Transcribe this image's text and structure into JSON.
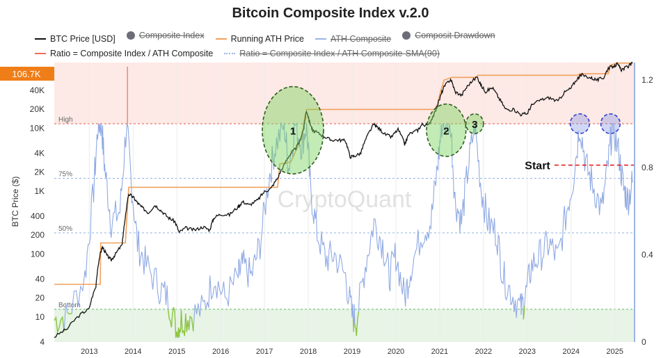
{
  "chart_data": {
    "type": "line",
    "title": "Bitcoin Composite Index v.2.0",
    "ylabel": "BTC Price ($)",
    "current_price_badge": "106.7K",
    "legend": [
      {
        "name": "BTC Price [USD]",
        "kind": "line",
        "color": "#111111",
        "active": true
      },
      {
        "name": "Composite Index",
        "kind": "dot",
        "color": "#6d6d7a",
        "active": false
      },
      {
        "name": "Running ATH Price",
        "kind": "line",
        "color": "#f0a15c",
        "active": true
      },
      {
        "name": "ATH Composite",
        "kind": "line",
        "color": "#9bb3e6",
        "active": false
      },
      {
        "name": "Composit Drawdown",
        "kind": "dot",
        "color": "#6d6d7a",
        "active": false
      },
      {
        "name": "Ratio = Composite Index / ATH Composite",
        "kind": "line",
        "color": "#f06a5a",
        "active": true
      },
      {
        "name": "Ratio = Composite Index / ATH  Composite-SMA(90)",
        "kind": "dotted",
        "color": "#9bb3e6",
        "active": false
      }
    ],
    "x_ticks": [
      "2013",
      "2014",
      "2015",
      "2016",
      "2017",
      "2018",
      "2019",
      "2020",
      "2021",
      "2022",
      "2023",
      "2024",
      "2025"
    ],
    "x_range": [
      2012.2,
      2025.45
    ],
    "y_left": {
      "scale": "log",
      "range": [
        4,
        110000
      ],
      "ticks": [
        "4",
        "10",
        "20",
        "40",
        "100",
        "200",
        "400",
        "1K",
        "2K",
        "4K",
        "10K",
        "20K",
        "40K"
      ]
    },
    "y_right": {
      "range": [
        0,
        1.28
      ],
      "ticks": [
        "0",
        "0.4",
        "0.8",
        "1.2"
      ]
    },
    "levels": [
      {
        "label": "High",
        "ratio": 1.0,
        "color": "#e05a4f"
      },
      {
        "label": "75%",
        "ratio": 0.75,
        "color": "#8fb0e8"
      },
      {
        "label": "50%",
        "ratio": 0.5,
        "color": "#8fb0e8"
      },
      {
        "label": "Bottom",
        "ratio": 0.15,
        "color": "#5cb85c"
      }
    ],
    "start_annotation": {
      "label": "Start",
      "ratio": 0.81,
      "x": 2024.35
    },
    "watermark": "CryptoQuant",
    "circles": [
      {
        "label": "1",
        "x": 2017.65,
        "ratio": 0.97,
        "rx": 0.7,
        "ry": 0.2,
        "color": "green"
      },
      {
        "label": "2",
        "x": 2021.15,
        "ratio": 0.97,
        "rx": 0.45,
        "ry": 0.12,
        "color": "green"
      },
      {
        "label": "3",
        "x": 2021.8,
        "ratio": 1.0,
        "rx": 0.2,
        "ry": 0.045,
        "color": "green"
      },
      {
        "label": "",
        "x": 2024.2,
        "ratio": 1.0,
        "rx": 0.22,
        "ry": 0.045,
        "color": "blue"
      },
      {
        "label": "",
        "x": 2024.9,
        "ratio": 1.0,
        "rx": 0.22,
        "ry": 0.045,
        "color": "blue"
      }
    ],
    "btc_price": [
      [
        2012.2,
        4.8
      ],
      [
        2012.5,
        6.5
      ],
      [
        2012.8,
        11
      ],
      [
        2013.0,
        13.5
      ],
      [
        2013.15,
        30
      ],
      [
        2013.25,
        100
      ],
      [
        2013.3,
        130
      ],
      [
        2013.4,
        95
      ],
      [
        2013.5,
        80
      ],
      [
        2013.6,
        100
      ],
      [
        2013.75,
        140
      ],
      [
        2013.82,
        350
      ],
      [
        2013.9,
        900
      ],
      [
        2014.0,
        800
      ],
      [
        2014.1,
        650
      ],
      [
        2014.2,
        550
      ],
      [
        2014.35,
        450
      ],
      [
        2014.5,
        600
      ],
      [
        2014.65,
        480
      ],
      [
        2014.8,
        380
      ],
      [
        2014.95,
        330
      ],
      [
        2015.05,
        220
      ],
      [
        2015.2,
        260
      ],
      [
        2015.4,
        240
      ],
      [
        2015.6,
        270
      ],
      [
        2015.75,
        240
      ],
      [
        2015.85,
        380
      ],
      [
        2016.0,
        430
      ],
      [
        2016.2,
        420
      ],
      [
        2016.4,
        560
      ],
      [
        2016.5,
        680
      ],
      [
        2016.65,
        600
      ],
      [
        2016.85,
        720
      ],
      [
        2017.0,
        980
      ],
      [
        2017.15,
        1100
      ],
      [
        2017.3,
        1600
      ],
      [
        2017.45,
        2600
      ],
      [
        2017.6,
        4000
      ],
      [
        2017.7,
        4600
      ],
      [
        2017.8,
        6000
      ],
      [
        2017.9,
        10000
      ],
      [
        2017.96,
        19000
      ],
      [
        2018.02,
        13000
      ],
      [
        2018.1,
        9000
      ],
      [
        2018.2,
        8500
      ],
      [
        2018.35,
        7500
      ],
      [
        2018.5,
        6500
      ],
      [
        2018.7,
        6500
      ],
      [
        2018.85,
        6300
      ],
      [
        2018.95,
        3500
      ],
      [
        2019.05,
        3600
      ],
      [
        2019.2,
        4000
      ],
      [
        2019.35,
        7500
      ],
      [
        2019.5,
        11500
      ],
      [
        2019.6,
        10000
      ],
      [
        2019.75,
        8000
      ],
      [
        2019.9,
        7200
      ],
      [
        2020.05,
        9500
      ],
      [
        2020.2,
        5500
      ],
      [
        2020.3,
        8000
      ],
      [
        2020.5,
        9300
      ],
      [
        2020.6,
        11500
      ],
      [
        2020.75,
        11000
      ],
      [
        2020.9,
        18000
      ],
      [
        2021.0,
        29000
      ],
      [
        2021.1,
        45000
      ],
      [
        2021.25,
        60000
      ],
      [
        2021.35,
        38000
      ],
      [
        2021.5,
        33000
      ],
      [
        2021.65,
        48000
      ],
      [
        2021.85,
        65000
      ],
      [
        2021.95,
        47000
      ],
      [
        2022.05,
        38000
      ],
      [
        2022.2,
        44000
      ],
      [
        2022.35,
        30000
      ],
      [
        2022.5,
        20000
      ],
      [
        2022.7,
        19500
      ],
      [
        2022.85,
        16500
      ],
      [
        2023.0,
        17000
      ],
      [
        2023.1,
        23000
      ],
      [
        2023.3,
        28000
      ],
      [
        2023.5,
        30500
      ],
      [
        2023.7,
        26500
      ],
      [
        2023.85,
        37000
      ],
      [
        2024.0,
        43000
      ],
      [
        2024.15,
        62000
      ],
      [
        2024.25,
        70000
      ],
      [
        2024.45,
        63000
      ],
      [
        2024.6,
        58000
      ],
      [
        2024.75,
        64000
      ],
      [
        2024.85,
        90000
      ],
      [
        2025.0,
        98000
      ],
      [
        2025.05,
        104000
      ],
      [
        2025.15,
        85000
      ],
      [
        2025.3,
        95000
      ],
      [
        2025.4,
        106700
      ]
    ],
    "ath_price": [
      [
        2012.2,
        33
      ],
      [
        2013.25,
        33
      ],
      [
        2013.26,
        150
      ],
      [
        2013.82,
        150
      ],
      [
        2013.83,
        180
      ],
      [
        2013.9,
        1150
      ],
      [
        2017.3,
        1150
      ],
      [
        2017.35,
        2700
      ],
      [
        2017.6,
        2900
      ],
      [
        2017.75,
        4900
      ],
      [
        2017.85,
        7000
      ],
      [
        2017.92,
        15000
      ],
      [
        2017.96,
        19800
      ],
      [
        2020.9,
        19800
      ],
      [
        2020.95,
        24000
      ],
      [
        2021.0,
        34000
      ],
      [
        2021.1,
        58000
      ],
      [
        2021.28,
        64000
      ],
      [
        2021.85,
        64000
      ],
      [
        2021.87,
        69000
      ],
      [
        2024.15,
        69000
      ],
      [
        2024.2,
        73000
      ],
      [
        2024.85,
        73000
      ],
      [
        2024.9,
        100000
      ],
      [
        2025.05,
        108000
      ],
      [
        2025.4,
        108000
      ]
    ],
    "ratio": [
      [
        2012.2,
        0.1
      ],
      [
        2012.5,
        0.12
      ],
      [
        2012.9,
        0.3
      ],
      [
        2013.1,
        0.7
      ],
      [
        2013.2,
        1.0
      ],
      [
        2013.28,
        1.0
      ],
      [
        2013.35,
        0.8
      ],
      [
        2013.5,
        0.55
      ],
      [
        2013.7,
        0.6
      ],
      [
        2013.85,
        1.0
      ],
      [
        2013.95,
        0.75
      ],
      [
        2014.1,
        0.45
      ],
      [
        2014.3,
        0.35
      ],
      [
        2014.6,
        0.25
      ],
      [
        2014.8,
        0.2
      ],
      [
        2015.0,
        0.05
      ],
      [
        2015.1,
        0.1
      ],
      [
        2015.3,
        0.12
      ],
      [
        2015.6,
        0.15
      ],
      [
        2015.85,
        0.3
      ],
      [
        2016.1,
        0.2
      ],
      [
        2016.4,
        0.3
      ],
      [
        2016.5,
        0.35
      ],
      [
        2016.7,
        0.3
      ],
      [
        2016.9,
        0.45
      ],
      [
        2017.1,
        0.75
      ],
      [
        2017.25,
        0.9
      ],
      [
        2017.45,
        1.0
      ],
      [
        2017.55,
        0.8
      ],
      [
        2017.7,
        1.0
      ],
      [
        2017.85,
        0.9
      ],
      [
        2017.96,
        1.0
      ],
      [
        2018.05,
        0.7
      ],
      [
        2018.2,
        0.5
      ],
      [
        2018.4,
        0.38
      ],
      [
        2018.6,
        0.4
      ],
      [
        2018.85,
        0.3
      ],
      [
        2019.0,
        0.12
      ],
      [
        2019.1,
        0.1
      ],
      [
        2019.3,
        0.35
      ],
      [
        2019.5,
        0.55
      ],
      [
        2019.7,
        0.45
      ],
      [
        2019.85,
        0.3
      ],
      [
        2020.0,
        0.4
      ],
      [
        2020.2,
        0.2
      ],
      [
        2020.35,
        0.35
      ],
      [
        2020.6,
        0.5
      ],
      [
        2020.8,
        0.55
      ],
      [
        2020.95,
        0.8
      ],
      [
        2021.05,
        1.0
      ],
      [
        2021.25,
        1.0
      ],
      [
        2021.35,
        0.65
      ],
      [
        2021.5,
        0.55
      ],
      [
        2021.65,
        0.8
      ],
      [
        2021.8,
        1.0
      ],
      [
        2021.95,
        0.7
      ],
      [
        2022.1,
        0.55
      ],
      [
        2022.3,
        0.5
      ],
      [
        2022.45,
        0.3
      ],
      [
        2022.65,
        0.22
      ],
      [
        2022.85,
        0.15
      ],
      [
        2022.95,
        0.2
      ],
      [
        2023.1,
        0.35
      ],
      [
        2023.3,
        0.4
      ],
      [
        2023.5,
        0.45
      ],
      [
        2023.7,
        0.38
      ],
      [
        2023.9,
        0.6
      ],
      [
        2024.05,
        0.75
      ],
      [
        2024.2,
        1.0
      ],
      [
        2024.35,
        0.8
      ],
      [
        2024.5,
        0.72
      ],
      [
        2024.7,
        0.6
      ],
      [
        2024.85,
        0.82
      ],
      [
        2024.95,
        1.0
      ],
      [
        2025.1,
        0.85
      ],
      [
        2025.2,
        0.7
      ],
      [
        2025.3,
        0.65
      ],
      [
        2025.4,
        0.73
      ]
    ]
  },
  "palette": {
    "high_zone": "#fde9e5",
    "bottom_zone": "#e7f4e6",
    "price_badge": "#f07e18",
    "ratio_line": "#8fa9e3",
    "bottom_ratio_line": "#8cc63f",
    "ath_line": "#f0a15c",
    "price_line": "#111111",
    "right_axis_line": "#9bb3e6"
  }
}
